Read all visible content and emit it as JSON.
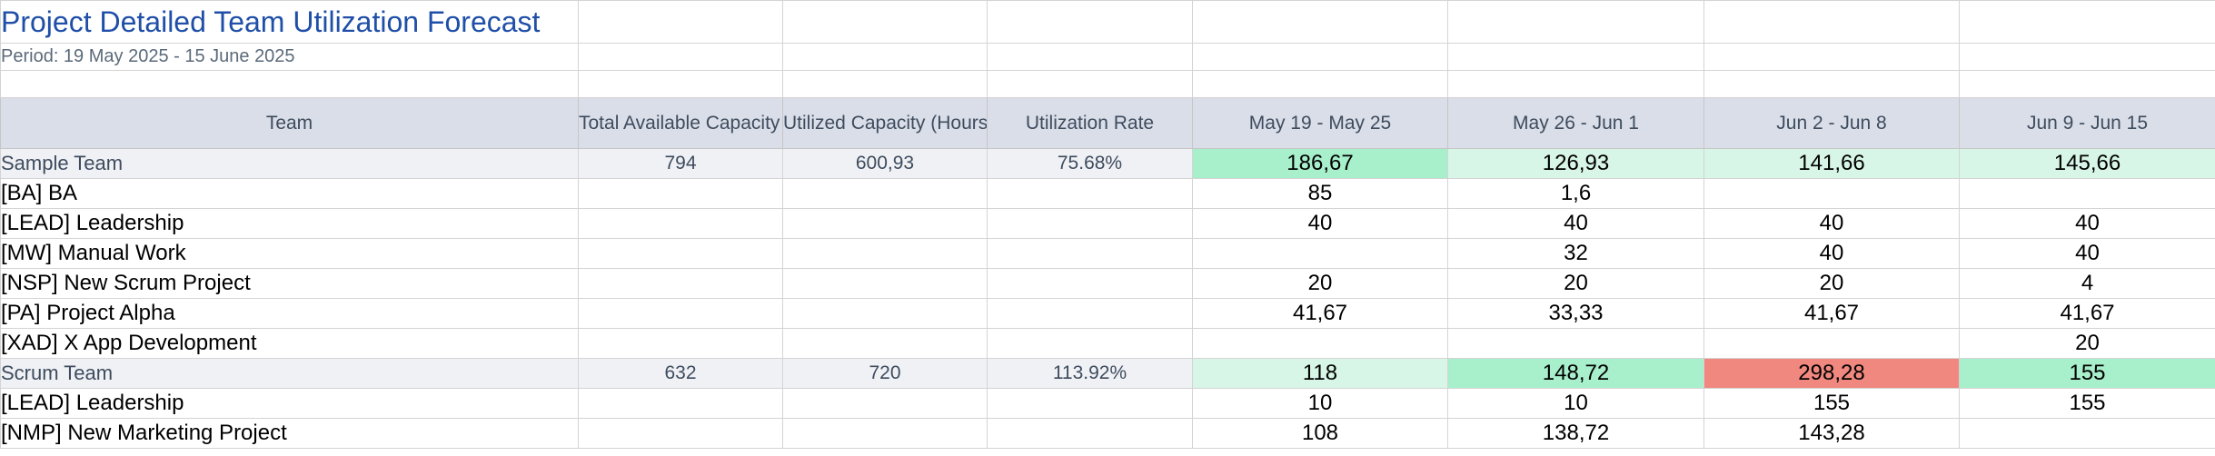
{
  "report": {
    "title": "Project Detailed Team Utilization Forecast",
    "period": "Period: 19 May 2025 - 15 June 2025"
  },
  "headers": {
    "team": "Team",
    "total_available": "Total Available Capacity (Hours)",
    "utilized": "Utilized Capacity (Hours)",
    "rate": "Utilization Rate",
    "weeks": [
      "May 19 - May 25",
      "May 26 - Jun 1",
      "Jun 2 - Jun 8",
      "Jun 9 - Jun 15"
    ]
  },
  "status_colors": {
    "light_green": "#d8f6e8",
    "green": "#a8efcc",
    "red": "#f0887f"
  },
  "teams": [
    {
      "name": "Sample Team",
      "total_available": "794",
      "utilized": "600,93",
      "rate": "75.68%",
      "weeks": [
        "186,67",
        "126,93",
        "141,66",
        "145,66"
      ],
      "week_status": [
        "green",
        "light_green",
        "light_green",
        "light_green"
      ],
      "projects": [
        {
          "name": "[BA] BA",
          "weeks": [
            "85",
            "1,6",
            "",
            ""
          ]
        },
        {
          "name": "[LEAD] Leadership",
          "weeks": [
            "40",
            "40",
            "40",
            "40"
          ]
        },
        {
          "name": "[MW] Manual Work",
          "weeks": [
            "",
            "32",
            "40",
            "40"
          ]
        },
        {
          "name": "[NSP] New Scrum Project",
          "weeks": [
            "20",
            "20",
            "20",
            "4"
          ]
        },
        {
          "name": "[PA] Project Alpha",
          "weeks": [
            "41,67",
            "33,33",
            "41,67",
            "41,67"
          ]
        },
        {
          "name": "[XAD] X App Development",
          "weeks": [
            "",
            "",
            "",
            "20"
          ]
        }
      ]
    },
    {
      "name": "Scrum Team",
      "total_available": "632",
      "utilized": "720",
      "rate": "113.92%",
      "weeks": [
        "118",
        "148,72",
        "298,28",
        "155"
      ],
      "week_status": [
        "light_green",
        "green",
        "red",
        "green"
      ],
      "projects": [
        {
          "name": "[LEAD] Leadership",
          "weeks": [
            "10",
            "10",
            "155",
            "155"
          ]
        },
        {
          "name": "[NMP] New Marketing Project",
          "weeks": [
            "108",
            "138,72",
            "143,28",
            ""
          ]
        }
      ]
    }
  ]
}
